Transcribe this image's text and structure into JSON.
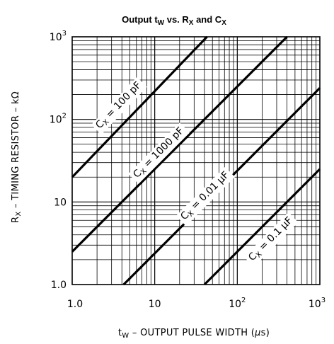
{
  "chart_data": {
    "type": "line",
    "title": "Output tW vs. RX and CX",
    "title_parts": {
      "t": "Output t",
      "t_sub": "W",
      "mid": " vs. R",
      "r_sub": "X",
      "and": " and C",
      "c_sub": "X"
    },
    "xlabel": "tW – OUTPUT PULSE WIDTH (μs)",
    "xlabel_parts": {
      "t": "t",
      "t_sub": "W",
      "rest": " – OUTPUT PULSE WIDTH (",
      "mu": "μ",
      "end": "s)"
    },
    "ylabel": "RX – TIMING RESISTOR – kΩ",
    "ylabel_parts": {
      "r": "R",
      "r_sub": "X",
      "rest": " – TIMING RESISTOR – k",
      "ohm": "Ω"
    },
    "x_scale": "log",
    "y_scale": "log",
    "xlim": [
      1,
      1000
    ],
    "ylim": [
      1,
      1000
    ],
    "x_ticks": [
      {
        "value": 1,
        "label": "1.0"
      },
      {
        "value": 10,
        "label": "10"
      },
      {
        "value": 100,
        "label": "10",
        "exp": "2"
      },
      {
        "value": 1000,
        "label": "10",
        "exp": "3"
      }
    ],
    "y_ticks": [
      {
        "value": 1,
        "label": "1.0"
      },
      {
        "value": 10,
        "label": "10"
      },
      {
        "value": 100,
        "label": "10",
        "exp": "2"
      },
      {
        "value": 1000,
        "label": "10",
        "exp": "3"
      }
    ],
    "grid": true,
    "series": [
      {
        "name": "CX = 100 pF",
        "label_main": "C",
        "label_sub": "X",
        "label_rest": " = 100 pF",
        "x": [
          1.0,
          43
        ],
        "y": [
          20,
          1000
        ],
        "label_at": [
          3.6,
          150
        ]
      },
      {
        "name": "CX = 1000 pF",
        "label_main": "C",
        "label_sub": "X",
        "label_rest": " = 1000 pF",
        "x": [
          1.0,
          400
        ],
        "y": [
          2.5,
          1000
        ],
        "label_at": [
          11,
          40
        ]
      },
      {
        "name": "CX = 0.01 μF",
        "label_main": "C",
        "label_sub": "X",
        "label_rest": " = 0.01 μF",
        "x": [
          4.2,
          1000
        ],
        "y": [
          1.0,
          240
        ],
        "label_at": [
          40,
          12
        ]
      },
      {
        "name": "CX = 0.1 μF",
        "label_main": "C",
        "label_sub": "X",
        "label_rest": " = 0.1 μF",
        "x": [
          40,
          1000
        ],
        "y": [
          1.0,
          25
        ],
        "label_at": [
          250,
          3.6
        ]
      }
    ]
  }
}
